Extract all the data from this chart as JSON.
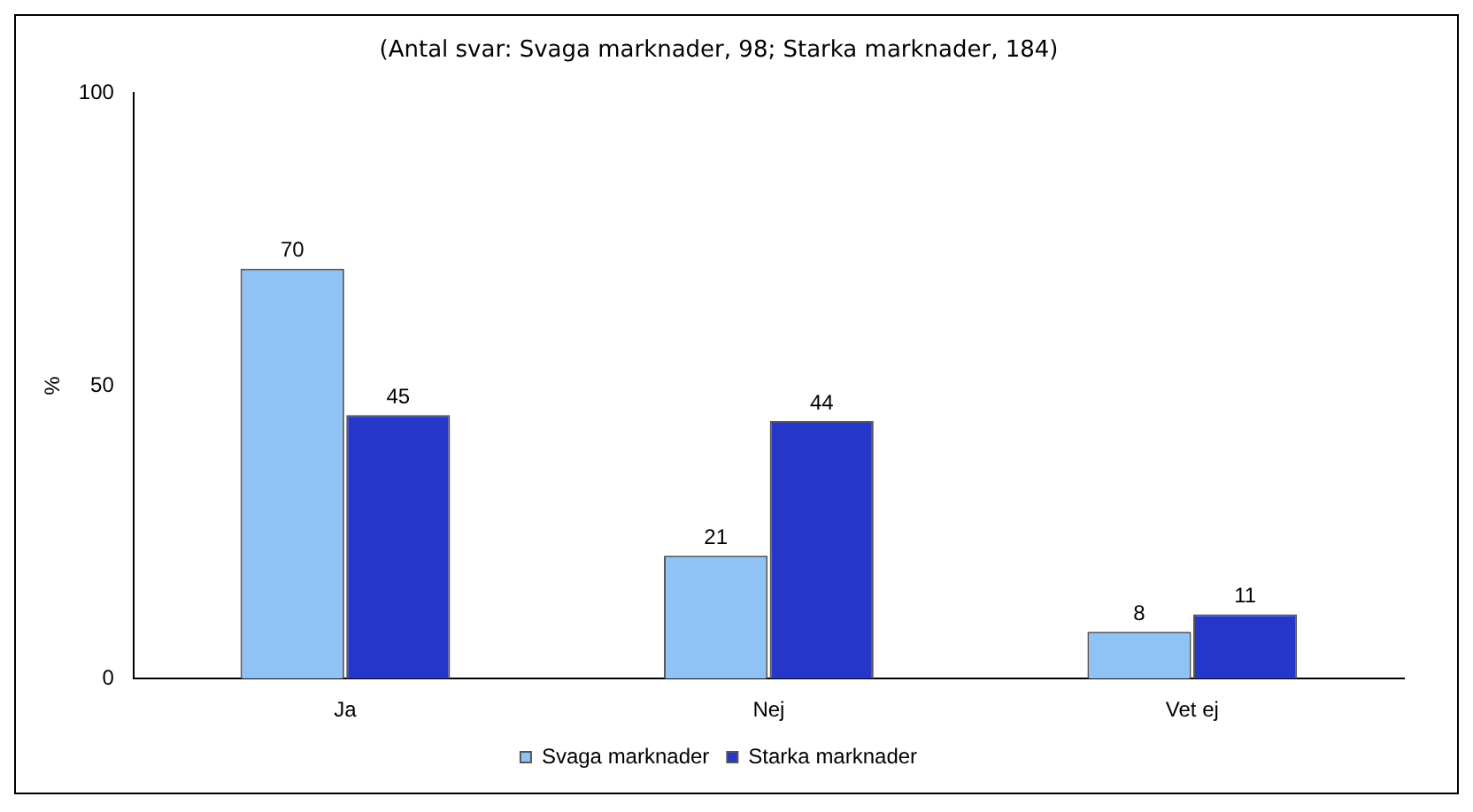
{
  "chart_data": {
    "type": "bar",
    "title": "(Antal svar: Svaga marknader, 98; Starka marknader, 184)",
    "ylabel": "%",
    "categories": [
      "Ja",
      "Nej",
      "Vet ej"
    ],
    "series": [
      {
        "name": "Svaga marknader",
        "color": "#8fc3f5",
        "values": [
          70,
          21,
          8
        ]
      },
      {
        "name": "Starka marknader",
        "color": "#2536c8",
        "values": [
          45,
          44,
          11
        ]
      }
    ],
    "ylim": [
      0,
      100
    ],
    "yticks": [
      0,
      50,
      100
    ],
    "grid": false,
    "legend": "bottom",
    "data_labels": true
  }
}
